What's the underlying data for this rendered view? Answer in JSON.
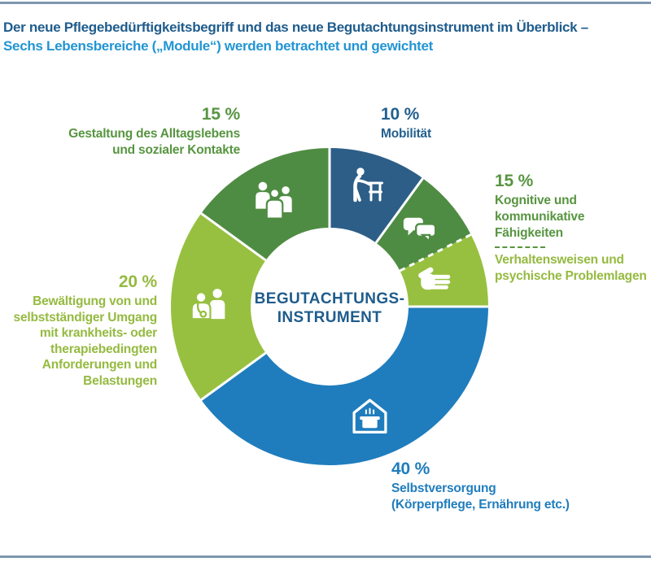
{
  "header": {
    "title_line1": "Der neue Pflegebedürftigkeitsbegriff und das neue Begutachtungsinstrument im Überblick –",
    "title_line2": "Sechs Lebensbereiche („Module“) werden betrachtet und gewichtet"
  },
  "colors": {
    "title_primary": "#1f5c8c",
    "title_secondary": "#2295d3",
    "rule": "#7d97ae",
    "text_navy": "#23608f",
    "text_blue": "#1f7dbd",
    "text_green_dark": "#579540",
    "text_green_light": "#95ba40"
  },
  "chart_data": {
    "type": "pie",
    "subtype": "donut",
    "title": "Sechs Lebensbereiche (Module) werden betrachtet und gewichtet",
    "units": "%",
    "center_label": "BEGUTACHTUNGS-INSTRUMENT",
    "legend_position": "around",
    "segments": [
      {
        "id": "mobilitaet",
        "label": "Mobilität",
        "value": 10,
        "sweep_deg": 36,
        "color": "#2d5e87",
        "icon": "walker-icon",
        "divider_at_start": "solid"
      },
      {
        "id": "kognitive-faehigkeiten",
        "label": "Kognitive und kommunikative Fähigkeiten",
        "value": 15,
        "sweep_deg": 27,
        "color": "#4f8c43",
        "icon": "speech-bubbles-icon",
        "divider_at_start": "solid"
      },
      {
        "id": "verhaltensweisen",
        "label": "Verhaltensweisen und psychische Problemlagen",
        "value": 15,
        "sweep_deg": 27,
        "color": "#97c040",
        "icon": "hand-icon",
        "divider_at_start": "dashed"
      },
      {
        "id": "selbstversorgung",
        "label": "Selbstversorgung (Körperpflege, Ernährung etc.)",
        "value": 40,
        "sweep_deg": 144,
        "color": "#1f7dbd",
        "icon": "house-pot-icon",
        "divider_at_start": "solid"
      },
      {
        "id": "bewaeltigung",
        "label": "Bewältigung von und selbstständiger Umgang mit krankheits- oder therapiebedingten Anforderungen und Belastungen",
        "value": 20,
        "sweep_deg": 72,
        "color": "#97c040",
        "icon": "caregiver-icon",
        "divider_at_start": "solid"
      },
      {
        "id": "gestaltung",
        "label": "Gestaltung des Alltagslebens und sozialer Kontakte",
        "value": 15,
        "sweep_deg": 54,
        "color": "#4f8c43",
        "icon": "people-group-icon",
        "divider_at_start": "solid"
      }
    ]
  },
  "center": {
    "line1": "BEGUTACHTUNGS-",
    "line2": "INSTRUMENT"
  },
  "callouts": {
    "mobilitaet": {
      "percent": "10 %",
      "lines": [
        "Mobilität"
      ]
    },
    "gestaltung": {
      "percent": "15 %",
      "lines": [
        "Gestaltung des Alltagslebens",
        "und sozialer Kontakte"
      ]
    },
    "kognitive": {
      "percent": "15 %",
      "lines": [
        "Kognitive und kommunikative",
        "Fähigkeiten"
      ],
      "lines2": [
        "Verhaltensweisen und",
        "psychische Problemlagen"
      ]
    },
    "bewaeltigung": {
      "percent": "20 %",
      "lines": [
        "Bewältigung von und",
        "selbstständiger Umgang",
        "mit krankheits- oder",
        "therapiebedingten",
        "Anforderungen und",
        "Belastungen"
      ]
    },
    "selbstversorgung": {
      "percent": "40 %",
      "lines": [
        "Selbstversorgung",
        "(Körperpflege, Ernährung etc.)"
      ]
    }
  }
}
